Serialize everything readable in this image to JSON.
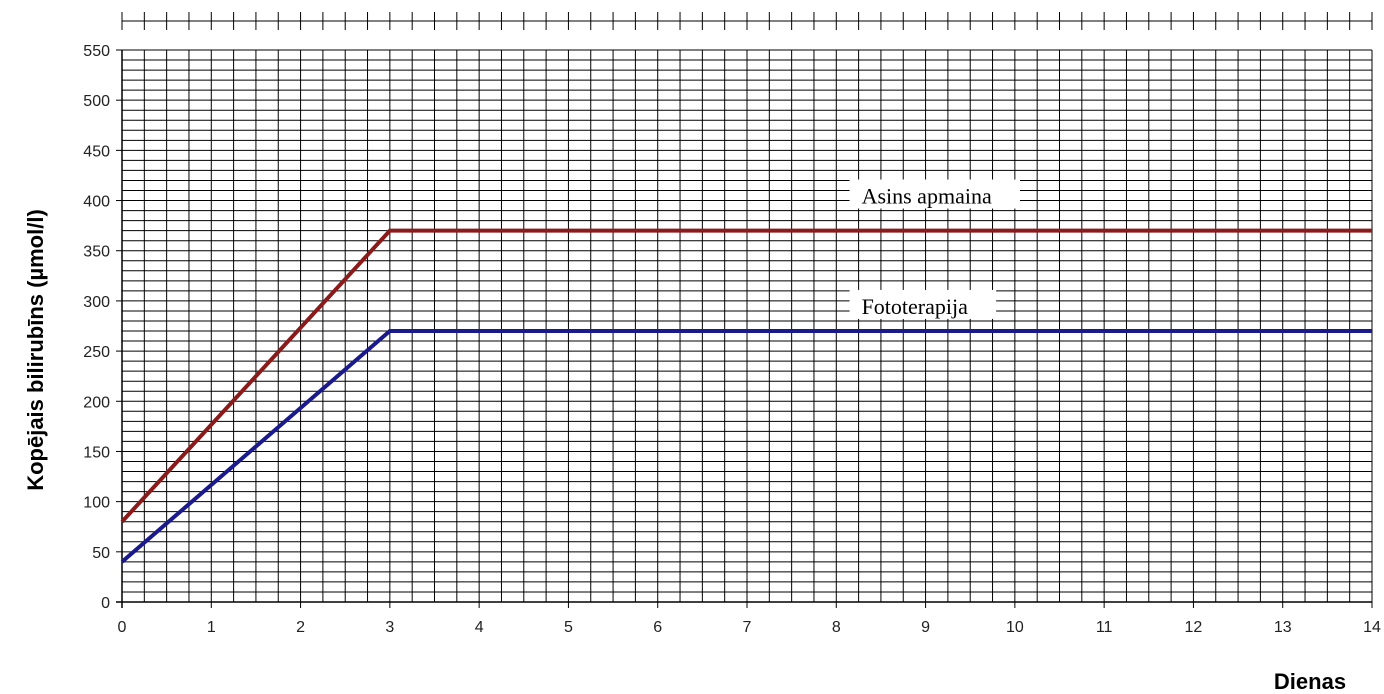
{
  "chart_data": {
    "type": "line",
    "title": "",
    "xlabel": "Dienas",
    "ylabel": "Kopējais bilirubīns (µmol/l)",
    "xlim": [
      0,
      14
    ],
    "ylim": [
      0,
      550
    ],
    "x_ticks": [
      0,
      1,
      2,
      3,
      4,
      5,
      6,
      7,
      8,
      9,
      10,
      11,
      12,
      13,
      14
    ],
    "y_ticks": [
      0,
      50,
      100,
      150,
      200,
      250,
      300,
      350,
      400,
      450,
      500,
      550
    ],
    "grid": true,
    "series": [
      {
        "x": [
          0,
          3,
          14
        ],
        "y": [
          80,
          370,
          370
        ],
        "color": "#8b1a1a"
      },
      {
        "x": [
          0,
          3,
          14
        ],
        "y": [
          40,
          270,
          270
        ],
        "color": "#1a1a8c"
      }
    ],
    "annotations": [
      {
        "text": "Asins apmaina",
        "x": 9,
        "y": 405
      },
      {
        "text": "Fototerapija",
        "x": 9,
        "y": 295
      }
    ]
  }
}
